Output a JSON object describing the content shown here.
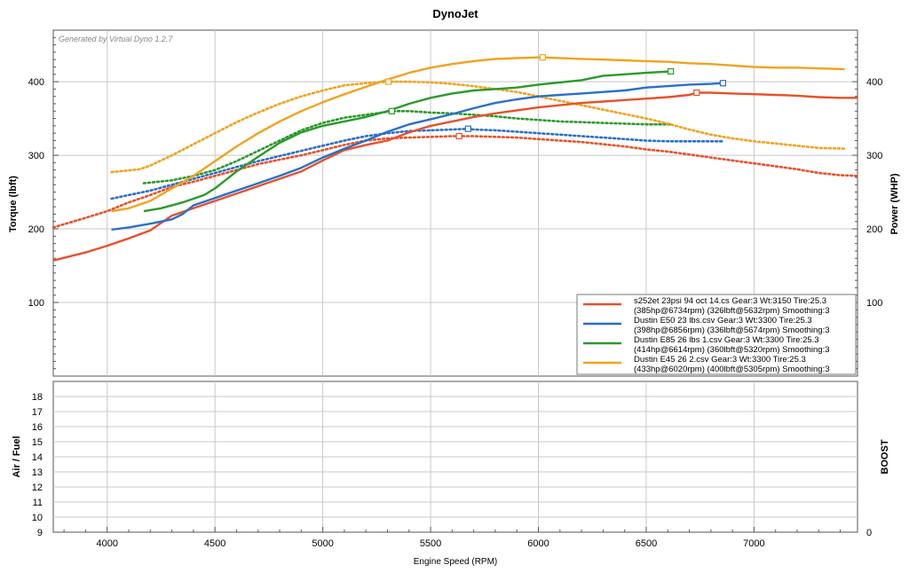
{
  "chart_data": [
    {
      "type": "line",
      "title": "DynoJet",
      "annotation": "Generated by Virtual Dyno 1.2.7",
      "xlabel": "Engine Speed (RPM)",
      "ylabel_left": "Torque (lbft)",
      "ylabel_right": "Power (WHP)",
      "xlim": [
        3750,
        7480
      ],
      "ylim": [
        0,
        470
      ],
      "x_ticks": [
        "4000",
        "4500",
        "5000",
        "5500",
        "6000",
        "6500",
        "7000"
      ],
      "y_ticks_left": [
        "100",
        "200",
        "300",
        "400"
      ],
      "y_ticks_right": [
        "100",
        "200",
        "300",
        "400"
      ],
      "grid": true,
      "legend_position": "bottom-right",
      "series": [
        {
          "name": "s252et 23psi 94 oct 14.cs Gear:3 Wt:3150 Tire:25.3",
          "legend_line2": "(385hp@6734rpm) (326lbft@5632rpm) Smoothing:3",
          "color": "#e8502a",
          "hp": {
            "x": [
              3750,
              3900,
              4000,
              4100,
              4200,
              4300,
              4400,
              4500,
              4600,
              4700,
              4800,
              4900,
              5000,
              5100,
              5200,
              5300,
              5400,
              5500,
              5600,
              5700,
              5800,
              5900,
              6000,
              6100,
              6200,
              6300,
              6400,
              6500,
              6600,
              6700,
              6734,
              6800,
              6900,
              7000,
              7100,
              7200,
              7300,
              7400,
              7480
            ],
            "y": [
              157,
              168,
              177,
              187,
              198,
              218,
              228,
              238,
              248,
              258,
              268,
              278,
              293,
              307,
              314,
              320,
              331,
              340,
              346,
              352,
              357,
              361,
              365,
              368,
              371,
              373,
              375,
              377,
              379,
              382,
              385,
              385,
              384,
              383,
              382,
              381,
              379,
              378,
              378
            ]
          },
          "torque": {
            "x": [
              3750,
              3900,
              4000,
              4100,
              4200,
              4300,
              4400,
              4500,
              4600,
              4700,
              4800,
              4900,
              5000,
              5100,
              5200,
              5300,
              5400,
              5500,
              5600,
              5632,
              5700,
              5800,
              5900,
              6000,
              6100,
              6200,
              6300,
              6400,
              6500,
              6600,
              6700,
              6800,
              6900,
              7000,
              7100,
              7200,
              7300,
              7400,
              7480
            ],
            "y": [
              202,
              215,
              224,
              236,
              246,
              257,
              264,
              272,
              280,
              288,
              294,
              300,
              307,
              314,
              320,
              323,
              324,
              325,
              326,
              326,
              326,
              325,
              324,
              322,
              320,
              318,
              315,
              312,
              308,
              305,
              301,
              297,
              293,
              289,
              285,
              281,
              276,
              273,
              272
            ]
          },
          "peak_hp": {
            "x": 6734,
            "y": 385
          },
          "peak_torque": {
            "x": 5632,
            "y": 326
          }
        },
        {
          "name": "Dustin E50 23 lbs.csv Gear:3 Wt:3300 Tire:25.3",
          "legend_line2": "(398hp@6856rpm) (336lbft@5674rpm) Smoothing:3",
          "color": "#2a6fcc",
          "hp": {
            "x": [
              4020,
              4100,
              4200,
              4300,
              4350,
              4400,
              4500,
              4600,
              4700,
              4800,
              4900,
              5000,
              5100,
              5200,
              5300,
              5400,
              5500,
              5600,
              5700,
              5800,
              5900,
              6000,
              6100,
              6200,
              6300,
              6400,
              6500,
              6600,
              6700,
              6800,
              6856
            ],
            "y": [
              199,
              202,
              207,
              213,
              220,
              232,
              242,
              252,
              262,
              272,
              283,
              297,
              309,
              320,
              332,
              342,
              349,
              356,
              364,
              371,
              376,
              380,
              382,
              384,
              386,
              388,
              392,
              394,
              396,
              397,
              398
            ]
          },
          "torque": {
            "x": [
              4020,
              4100,
              4200,
              4300,
              4400,
              4500,
              4600,
              4700,
              4800,
              4900,
              5000,
              5100,
              5200,
              5300,
              5400,
              5500,
              5600,
              5674,
              5700,
              5800,
              5900,
              6000,
              6100,
              6200,
              6300,
              6400,
              6500,
              6600,
              6700,
              6800,
              6856
            ],
            "y": [
              241,
              246,
              252,
              260,
              268,
              276,
              284,
              292,
              299,
              306,
              313,
              320,
              326,
              330,
              333,
              334,
              335,
              336,
              335,
              334,
              332,
              330,
              328,
              326,
              324,
              322,
              320,
              319,
              319,
              319,
              319
            ]
          },
          "peak_hp": {
            "x": 6856,
            "y": 398
          },
          "peak_torque": {
            "x": 5674,
            "y": 336
          }
        },
        {
          "name": "Dustin E85 26 lbs 1.csv Gear:3 Wt:3300 Tire:25.3",
          "legend_line2": "(414hp@6614rpm) (360lbft@5320rpm) Smoothing:3",
          "color": "#2a9a2a",
          "hp": {
            "x": [
              4170,
              4250,
              4350,
              4450,
              4500,
              4600,
              4700,
              4800,
              4900,
              5000,
              5100,
              5200,
              5300,
              5400,
              5500,
              5600,
              5700,
              5800,
              5900,
              6000,
              6100,
              6200,
              6300,
              6400,
              6500,
              6614
            ],
            "y": [
              224,
              228,
              236,
              246,
              255,
              278,
              298,
              317,
              331,
              340,
              346,
              352,
              360,
              370,
              378,
              384,
              388,
              390,
              392,
              396,
              399,
              402,
              408,
              410,
              412,
              414
            ]
          },
          "torque": {
            "x": [
              4170,
              4300,
              4400,
              4500,
              4600,
              4700,
              4800,
              4900,
              5000,
              5100,
              5200,
              5320,
              5400,
              5500,
              5600,
              5700,
              5800,
              5900,
              6000,
              6100,
              6200,
              6300,
              6400,
              6500,
              6614
            ],
            "y": [
              262,
              266,
              272,
              280,
              292,
              306,
              320,
              334,
              344,
              351,
              355,
              360,
              360,
              358,
              357,
              355,
              353,
              350,
              348,
              346,
              345,
              344,
              343,
              342,
              342
            ]
          },
          "peak_hp": {
            "x": 6614,
            "y": 414
          },
          "peak_torque": {
            "x": 5320,
            "y": 360
          }
        },
        {
          "name": "Dustin E45 26 2.csv Gear:3 Wt:3300 Tire:25.3",
          "legend_line2": "(433hp@6020rpm) (400lbft@5305rpm) Smoothing:3",
          "color": "#f2a21e",
          "hp": {
            "x": [
              4020,
              4100,
              4200,
              4300,
              4400,
              4500,
              4600,
              4700,
              4800,
              4900,
              5000,
              5100,
              5200,
              5300,
              5400,
              5500,
              5600,
              5700,
              5800,
              5900,
              6000,
              6020,
              6100,
              6200,
              6300,
              6400,
              6500,
              6600,
              6700,
              6800,
              6900,
              7000,
              7100,
              7200,
              7300,
              7420
            ],
            "y": [
              224,
              228,
              238,
              255,
              272,
              292,
              312,
              330,
              346,
              360,
              372,
              383,
              393,
              403,
              412,
              419,
              424,
              428,
              431,
              432,
              433,
              433,
              432,
              431,
              430,
              429,
              428,
              427,
              425,
              424,
              422,
              420,
              419,
              419,
              418,
              417
            ]
          },
          "torque": {
            "x": [
              4020,
              4150,
              4200,
              4300,
              4400,
              4500,
              4600,
              4700,
              4800,
              4900,
              5000,
              5100,
              5200,
              5305,
              5400,
              5500,
              5600,
              5700,
              5800,
              5900,
              6000,
              6100,
              6200,
              6300,
              6400,
              6500,
              6600,
              6700,
              6800,
              6900,
              7000,
              7100,
              7200,
              7300,
              7420
            ],
            "y": [
              277,
              281,
              286,
              300,
              315,
              330,
              345,
              358,
              370,
              380,
              388,
              395,
              398,
              400,
              400,
              399,
              397,
              394,
              390,
              386,
              380,
              374,
              368,
              362,
              356,
              350,
              343,
              335,
              328,
              323,
              319,
              316,
              313,
              310,
              309
            ]
          },
          "peak_hp": {
            "x": 6020,
            "y": 433
          },
          "peak_torque": {
            "x": 5305,
            "y": 400
          }
        }
      ]
    },
    {
      "type": "line",
      "ylabel_left": "Air / Fuel",
      "ylabel_right": "BOOST",
      "xlim": [
        3750,
        7480
      ],
      "ylim": [
        9,
        19
      ],
      "y_ticks_left": [
        "9",
        "10",
        "11",
        "12",
        "13",
        "14",
        "15",
        "16",
        "17",
        "18"
      ],
      "y_ticks_right": [
        "0"
      ],
      "grid": true,
      "series": []
    }
  ]
}
